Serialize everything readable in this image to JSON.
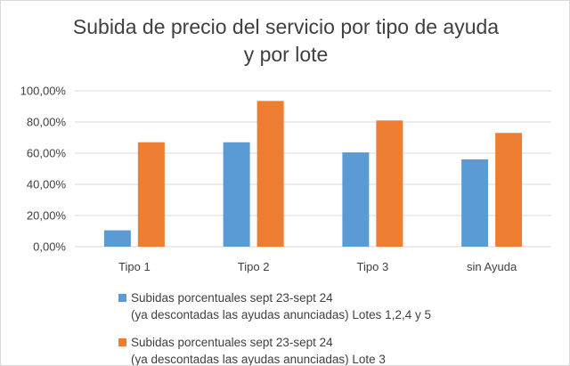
{
  "chart_data": {
    "type": "bar",
    "title_lines": [
      "Subida de precio del servicio por tipo de ayuda",
      "y por lote"
    ],
    "categories": [
      "Tipo 1",
      "Tipo 2",
      "Tipo 3",
      "sin Ayuda"
    ],
    "series": [
      {
        "name": "Subidas porcentuales sept 23-sept 24\n(ya descontadas las ayudas anunciadas) Lotes 1,2,4 y 5",
        "color": "#5b9bd5",
        "values": [
          10.5,
          67,
          60.5,
          56
        ]
      },
      {
        "name": "Subidas porcentuales sept 23-sept 24\n(ya descontadas las ayudas anunciadas) Lote 3",
        "color": "#ed7d31",
        "values": [
          67,
          93.5,
          81,
          73
        ]
      }
    ],
    "y_ticks": [
      "0,00%",
      "20,00%",
      "40,00%",
      "60,00%",
      "80,00%",
      "100,00%"
    ],
    "ylim": [
      0,
      100
    ],
    "grid": true,
    "legend_position": "bottom",
    "gridline_color": "#d9d9d9"
  }
}
